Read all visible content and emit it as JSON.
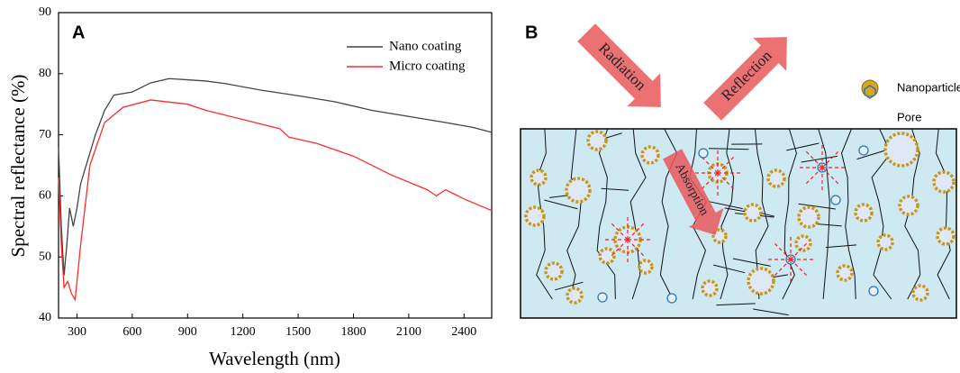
{
  "chart_data": {
    "type": "line",
    "panel_label": "A",
    "x_label": "Wavelength (nm)",
    "y_label": "Spectral reflectance (%)",
    "xlim": [
      200,
      2550
    ],
    "ylim": [
      40,
      90
    ],
    "xticks": [
      300,
      600,
      900,
      1200,
      1500,
      1800,
      2100,
      2400
    ],
    "yticks": [
      40,
      50,
      60,
      70,
      80,
      90
    ],
    "legend": "upper right",
    "series": [
      {
        "name": "Nano coating",
        "color": "#444444",
        "x": [
          200,
          215,
          230,
          245,
          260,
          280,
          300,
          320,
          360,
          400,
          450,
          500,
          600,
          700,
          800,
          900,
          1000,
          1100,
          1300,
          1500,
          1700,
          1900,
          2100,
          2300,
          2450,
          2550
        ],
        "values": [
          68,
          55,
          47,
          52,
          58,
          55,
          58,
          62,
          66,
          70,
          74,
          76.5,
          77,
          78.5,
          79.2,
          79,
          78.8,
          78.4,
          77.3,
          76.4,
          75.4,
          74,
          73,
          72,
          71.2,
          70.4
        ]
      },
      {
        "name": "Micro coating",
        "color": "#ff2a2a",
        "x": [
          200,
          215,
          230,
          250,
          270,
          290,
          320,
          370,
          450,
          550,
          700,
          900,
          1000,
          1200,
          1400,
          1450,
          1600,
          1800,
          2000,
          2200,
          2250,
          2300,
          2400,
          2550
        ],
        "values": [
          63,
          52,
          45,
          46,
          44,
          43,
          52,
          65,
          72,
          74.5,
          75.7,
          75,
          74,
          72.5,
          71,
          69.6,
          68.6,
          66.5,
          63.5,
          61,
          60,
          61,
          59.5,
          57.6
        ]
      }
    ]
  },
  "diagram": {
    "panel_label": "B",
    "arrows": [
      "Radiation",
      "Reflection",
      "Absorption"
    ],
    "legend": [
      "Nanoparticle",
      "Pore"
    ]
  }
}
